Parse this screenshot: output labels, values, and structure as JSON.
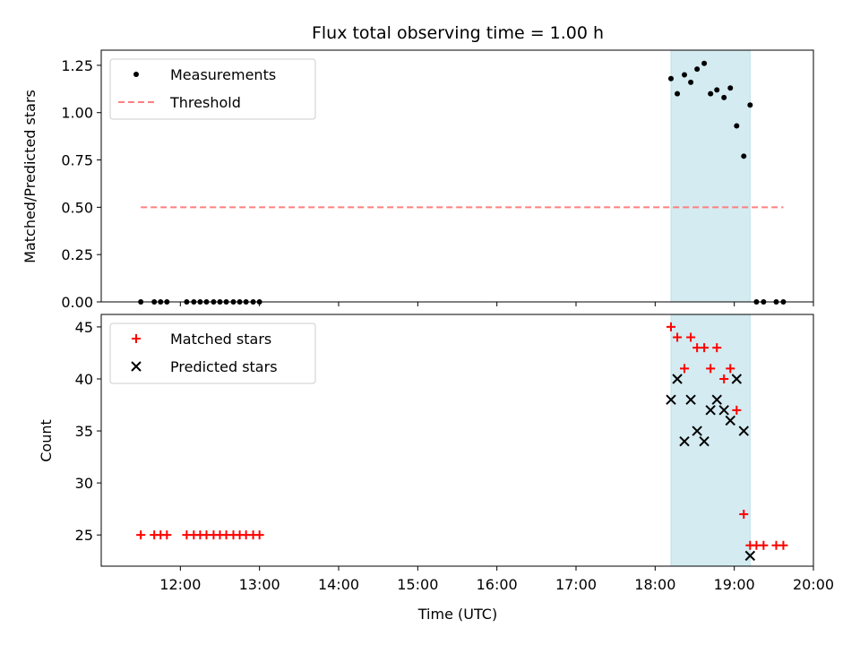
{
  "chart_data": [
    {
      "type": "scatter",
      "title": "Flux total observing time = 1.00 h",
      "xlabel": "",
      "ylabel": "Matched/Predicted stars",
      "xlim": [
        11.0,
        20.0
      ],
      "ylim": [
        0.0,
        1.33
      ],
      "yticks": [
        "0.00",
        "0.25",
        "0.50",
        "0.75",
        "1.00",
        "1.25"
      ],
      "shaded_interval": [
        18.2,
        19.2
      ],
      "shaded_color": "#d3ebf1",
      "legend_position": "top-left",
      "series": [
        {
          "name": "Measurements",
          "marker": "dot",
          "color": "#000000",
          "points": [
            [
              11.5,
              0.0
            ],
            [
              11.67,
              0.0
            ],
            [
              11.75,
              0.0
            ],
            [
              11.83,
              0.0
            ],
            [
              12.08,
              0.0
            ],
            [
              12.17,
              0.0
            ],
            [
              12.25,
              0.0
            ],
            [
              12.33,
              0.0
            ],
            [
              12.42,
              0.0
            ],
            [
              12.5,
              0.0
            ],
            [
              12.58,
              0.0
            ],
            [
              12.67,
              0.0
            ],
            [
              12.75,
              0.0
            ],
            [
              12.83,
              0.0
            ],
            [
              12.92,
              0.0
            ],
            [
              13.0,
              0.0
            ],
            [
              18.2,
              1.18
            ],
            [
              18.28,
              1.1
            ],
            [
              18.37,
              1.2
            ],
            [
              18.45,
              1.16
            ],
            [
              18.53,
              1.23
            ],
            [
              18.62,
              1.26
            ],
            [
              18.7,
              1.1
            ],
            [
              18.78,
              1.12
            ],
            [
              18.87,
              1.08
            ],
            [
              18.95,
              1.13
            ],
            [
              19.03,
              0.93
            ],
            [
              19.12,
              0.77
            ],
            [
              19.2,
              1.04
            ],
            [
              19.28,
              0.0
            ],
            [
              19.37,
              0.0
            ],
            [
              19.53,
              0.0
            ],
            [
              19.62,
              0.0
            ]
          ]
        },
        {
          "name": "Threshold",
          "marker": "dashed-line",
          "color": "#ff7f7f",
          "points": [
            [
              11.5,
              0.5
            ],
            [
              19.62,
              0.5
            ]
          ]
        }
      ]
    },
    {
      "type": "scatter",
      "title": "",
      "xlabel": "Time (UTC)",
      "ylabel": "Count",
      "xlim": [
        11.0,
        20.0
      ],
      "ylim": [
        22.0,
        46.2
      ],
      "yticks": [
        "25",
        "30",
        "35",
        "40",
        "45"
      ],
      "xticks": [
        "12:00",
        "13:00",
        "14:00",
        "15:00",
        "16:00",
        "17:00",
        "18:00",
        "19:00",
        "20:00"
      ],
      "shaded_interval": [
        18.2,
        19.2
      ],
      "shaded_color": "#d3ebf1",
      "legend_position": "top-left",
      "series": [
        {
          "name": "Matched stars",
          "marker": "plus",
          "color": "#ff0000",
          "points": [
            [
              11.5,
              25
            ],
            [
              11.67,
              25
            ],
            [
              11.75,
              25
            ],
            [
              11.83,
              25
            ],
            [
              12.08,
              25
            ],
            [
              12.17,
              25
            ],
            [
              12.25,
              25
            ],
            [
              12.33,
              25
            ],
            [
              12.42,
              25
            ],
            [
              12.5,
              25
            ],
            [
              12.58,
              25
            ],
            [
              12.67,
              25
            ],
            [
              12.75,
              25
            ],
            [
              12.83,
              25
            ],
            [
              12.92,
              25
            ],
            [
              13.0,
              25
            ],
            [
              18.2,
              45
            ],
            [
              18.28,
              44
            ],
            [
              18.37,
              41
            ],
            [
              18.45,
              44
            ],
            [
              18.53,
              43
            ],
            [
              18.62,
              43
            ],
            [
              18.7,
              41
            ],
            [
              18.78,
              43
            ],
            [
              18.87,
              40
            ],
            [
              18.95,
              41
            ],
            [
              19.03,
              37
            ],
            [
              19.12,
              27
            ],
            [
              19.2,
              24
            ],
            [
              19.28,
              24
            ],
            [
              19.37,
              24
            ],
            [
              19.53,
              24
            ],
            [
              19.62,
              24
            ]
          ]
        },
        {
          "name": "Predicted stars",
          "marker": "x",
          "color": "#000000",
          "points": [
            [
              18.2,
              38
            ],
            [
              18.28,
              40
            ],
            [
              18.37,
              34
            ],
            [
              18.45,
              38
            ],
            [
              18.53,
              35
            ],
            [
              18.62,
              34
            ],
            [
              18.7,
              37
            ],
            [
              18.78,
              38
            ],
            [
              18.87,
              37
            ],
            [
              18.95,
              36
            ],
            [
              19.03,
              40
            ],
            [
              19.12,
              35
            ],
            [
              19.2,
              23
            ]
          ]
        }
      ]
    }
  ]
}
